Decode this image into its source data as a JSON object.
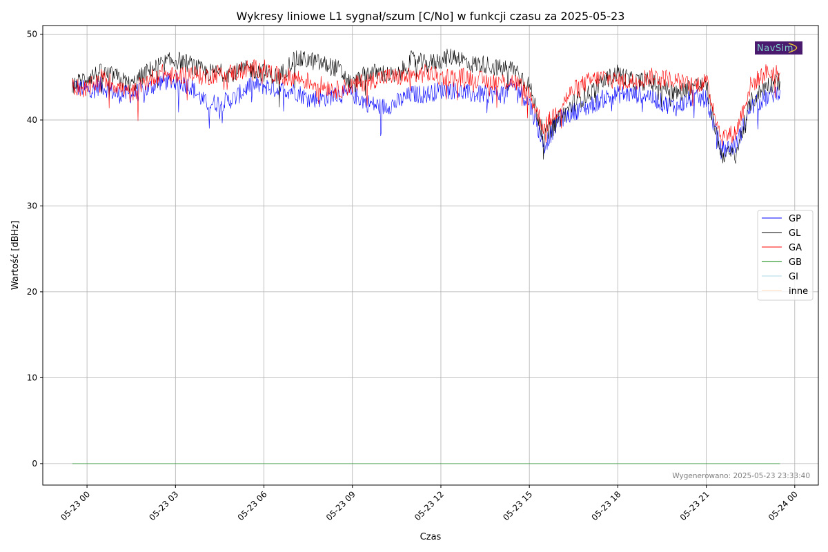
{
  "chart_data": {
    "type": "line",
    "title": "Wykresy liniowe L1 sygnał/szum [C/No] w funkcji czasu za 2025-05-23",
    "xlabel": "Czas",
    "ylabel": "Wartość [dBHz]",
    "ylim": [
      -2.5,
      51
    ],
    "xlim_hours": [
      -1.5,
      24.8
    ],
    "yticks": [
      0,
      10,
      20,
      30,
      40,
      50
    ],
    "xticks_hours": [
      0,
      3,
      6,
      9,
      12,
      15,
      18,
      21,
      24
    ],
    "xtick_labels": [
      "05-23 00",
      "05-23 03",
      "05-23 06",
      "05-23 09",
      "05-23 12",
      "05-23 15",
      "05-23 18",
      "05-23 21",
      "05-24 00"
    ],
    "grid": true,
    "legend_position": "center-right",
    "x_hours": [
      -0.5,
      0,
      0.5,
      1,
      1.5,
      2,
      2.5,
      3,
      3.5,
      4,
      4.5,
      5,
      5.5,
      6,
      6.5,
      7,
      7.5,
      8,
      8.5,
      9,
      9.5,
      10,
      10.5,
      11,
      11.5,
      12,
      12.5,
      13,
      13.5,
      14,
      14.5,
      15,
      15.5,
      16,
      16.5,
      17,
      17.5,
      18,
      18.5,
      19,
      19.5,
      20,
      20.5,
      21,
      21.5,
      22,
      22.5,
      23,
      23.5
    ],
    "series": [
      {
        "name": "GP",
        "color": "#0000ff",
        "values": [
          44,
          43.5,
          44,
          43,
          43,
          43.5,
          44.5,
          44.5,
          44,
          42,
          42,
          42.5,
          44,
          44,
          43.5,
          43.5,
          42.5,
          42.5,
          43,
          43,
          42,
          41.5,
          42,
          43,
          43,
          43.5,
          43.5,
          43,
          43,
          43,
          44,
          42,
          37,
          40,
          41,
          41.5,
          42.5,
          43,
          43,
          43,
          42,
          41.5,
          42.5,
          42.5,
          36.5,
          37,
          41.5,
          42.5,
          43.5
        ]
      },
      {
        "name": "GL",
        "color": "#000000",
        "values": [
          44,
          45,
          45.5,
          45,
          44,
          45.5,
          46.5,
          47,
          46.5,
          45.5,
          45.5,
          45.5,
          46,
          45.5,
          45,
          47,
          47,
          46.5,
          46,
          44,
          45.5,
          45.5,
          45,
          47,
          46.5,
          47,
          47.5,
          46.5,
          46.5,
          46,
          46,
          44,
          38,
          40,
          42,
          43,
          44.5,
          45.5,
          44.5,
          44.5,
          44,
          43,
          44,
          44,
          36,
          36,
          42,
          44,
          44.5
        ]
      },
      {
        "name": "GA",
        "color": "#ff0000",
        "values": [
          44,
          43.5,
          45,
          44,
          43,
          44.5,
          45.5,
          45,
          45.5,
          45,
          45.5,
          45.5,
          46,
          46,
          45,
          45,
          44.5,
          44,
          43.5,
          44,
          44.5,
          45,
          45,
          45,
          45.5,
          45,
          45,
          45,
          44.5,
          44.5,
          44.5,
          43,
          39,
          41.5,
          43.5,
          44.5,
          45,
          44.5,
          44.5,
          45,
          45,
          44.5,
          44,
          44.5,
          38,
          38.5,
          44,
          45.5,
          45.5
        ]
      },
      {
        "name": "GB",
        "color": "#008000",
        "values": [
          0,
          0,
          0,
          0,
          0,
          0,
          0,
          0,
          0,
          0,
          0,
          0,
          0,
          0,
          0,
          0,
          0,
          0,
          0,
          0,
          0,
          0,
          0,
          0,
          0,
          0,
          0,
          0,
          0,
          0,
          0,
          0,
          0,
          0,
          0,
          0,
          0,
          0,
          0,
          0,
          0,
          0,
          0,
          0,
          0,
          0,
          0,
          0,
          0
        ]
      },
      {
        "name": "GI",
        "color": "#add8e6",
        "values": [
          0,
          0,
          0,
          0,
          0,
          0,
          0,
          0,
          0,
          0,
          0,
          0,
          0,
          0,
          0,
          0,
          0,
          0,
          0,
          0,
          0,
          0,
          0,
          0,
          0,
          0,
          0,
          0,
          0,
          0,
          0,
          0,
          0,
          0,
          0,
          0,
          0,
          0,
          0,
          0,
          0,
          0,
          0,
          0,
          0,
          0,
          0,
          0,
          0
        ]
      },
      {
        "name": "inne",
        "color": "#ffdab9",
        "values": [
          0,
          0,
          0,
          0,
          0,
          0,
          0,
          0,
          0,
          0,
          0,
          0,
          0,
          0,
          0,
          0,
          0,
          0,
          0,
          0,
          0,
          0,
          0,
          0,
          0,
          0,
          0,
          0,
          0,
          0,
          0,
          0,
          0,
          0,
          0,
          0,
          0,
          0,
          0,
          0,
          0,
          0,
          0,
          0,
          0,
          0,
          0,
          0,
          0
        ]
      }
    ],
    "annotation": "Wygenerowano: 2025-05-23 23:33:40",
    "logo_text": "NavSim",
    "logo_color": "#4a1a6e"
  }
}
